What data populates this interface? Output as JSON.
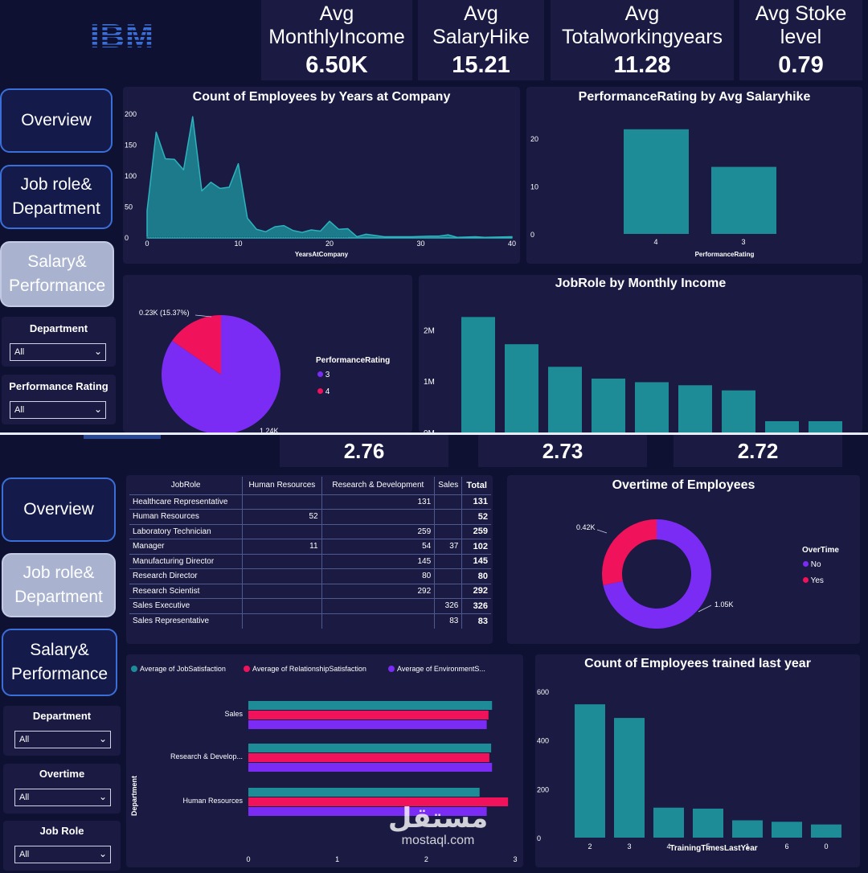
{
  "colors": {
    "teal": "#1e8c96",
    "pink": "#f0125a",
    "purple": "#7a2cf5",
    "navy": "#0f1133",
    "card": "#1a1a42"
  },
  "logo": {
    "text": "IBM"
  },
  "kpis": [
    {
      "label": "Avg MonthlyIncome",
      "value": "6.50K"
    },
    {
      "label": "Avg SalaryHike",
      "value": "15.21"
    },
    {
      "label": "Avg Totalworkingyears",
      "value": "11.28"
    },
    {
      "label": "Avg Stoke level",
      "value": "0.79"
    }
  ],
  "nav_top": {
    "overview": "Overview",
    "jobrole": "Job role& Department",
    "salary": "Salary& Performance"
  },
  "slicers_top": {
    "department": {
      "title": "Department",
      "value": "All"
    },
    "performance": {
      "title": "Performance Rating",
      "value": "All"
    }
  },
  "charts": {
    "years_at_company": {
      "title": "Count of Employees by Years at Company",
      "xlabel": "YearsAtCompany",
      "yticks": [
        "200",
        "150",
        "100",
        "50",
        "0"
      ],
      "xticks": [
        "0",
        "10",
        "20",
        "30",
        "40"
      ]
    },
    "perf_salaryhike": {
      "title": "PerformanceRating by Avg Salaryhike",
      "xlabel": "PerformanceRating",
      "yticks": [
        "20",
        "10",
        "0"
      ]
    },
    "perf_pie": {
      "legend_title": "PerformanceRating",
      "label_small": "0.23K (15.37%)",
      "label_large": "1.24K"
    },
    "jobrole_income": {
      "title": "JobRole by Monthly Income",
      "yticks": [
        "2M",
        "1M",
        "0M"
      ]
    },
    "overtime": {
      "title": "Overtime of Employees",
      "legend_title": "OverTime",
      "label_yes": "0.42K",
      "label_no": "1.05K"
    },
    "satisfaction": {
      "legend": [
        "Average of JobSatisfaction",
        "Average of RelationshipSatisfaction",
        "Average of EnvironmentS..."
      ],
      "ylabel": "Department",
      "xticks": [
        "0",
        "1",
        "2",
        "3"
      ]
    },
    "trained": {
      "title": "Count of Employees trained last year",
      "xlabel": "TrainingTimesLastYear",
      "yticks": [
        "600",
        "400",
        "200",
        "0"
      ]
    }
  },
  "chart_data": [
    {
      "type": "area",
      "title": "Count of Employees by Years at Company",
      "xlabel": "YearsAtCompany",
      "ylabel": "",
      "xlim": [
        0,
        40
      ],
      "ylim": [
        0,
        200
      ],
      "x": [
        0,
        1,
        2,
        3,
        4,
        5,
        6,
        7,
        8,
        9,
        10,
        11,
        12,
        13,
        14,
        15,
        16,
        17,
        18,
        19,
        20,
        21,
        22,
        23,
        24,
        25,
        26,
        27,
        29,
        31,
        32,
        33,
        34,
        36,
        37,
        40
      ],
      "values": [
        44,
        171,
        128,
        127,
        110,
        196,
        76,
        90,
        80,
        82,
        120,
        32,
        14,
        10,
        18,
        20,
        12,
        9,
        13,
        11,
        27,
        14,
        15,
        2,
        6,
        4,
        2,
        2,
        2,
        3,
        3,
        5,
        1,
        2,
        1,
        2
      ]
    },
    {
      "type": "bar",
      "title": "PerformanceRating by Avg Salaryhike",
      "xlabel": "PerformanceRating",
      "categories": [
        "4",
        "3"
      ],
      "values": [
        21.85,
        14.0
      ],
      "ylim": [
        0,
        24
      ]
    },
    {
      "type": "pie",
      "legend": "PerformanceRating",
      "categories": [
        "3",
        "4"
      ],
      "values": [
        1244,
        226
      ],
      "labels": [
        "1.24K",
        "0.23K (15.37%)"
      ]
    },
    {
      "type": "bar",
      "title": "JobRole by Monthly Income",
      "values": [
        2.25,
        1.72,
        1.28,
        1.05,
        0.98,
        0.92,
        0.82,
        0.22,
        0.22
      ],
      "ylim": [
        0,
        2.6
      ]
    },
    {
      "type": "table",
      "columns": [
        "JobRole",
        "Human Resources",
        "Research & Development",
        "Sales",
        "Total"
      ],
      "rows": [
        [
          "Healthcare Representative",
          "",
          "131",
          "",
          "131"
        ],
        [
          "Human Resources",
          "52",
          "",
          "",
          "52"
        ],
        [
          "Laboratory Technician",
          "",
          "259",
          "",
          "259"
        ],
        [
          "Manager",
          "11",
          "54",
          "37",
          "102"
        ],
        [
          "Manufacturing Director",
          "",
          "145",
          "",
          "145"
        ],
        [
          "Research Director",
          "",
          "80",
          "",
          "80"
        ],
        [
          "Research Scientist",
          "",
          "292",
          "",
          "292"
        ],
        [
          "Sales Executive",
          "",
          "",
          "326",
          "326"
        ],
        [
          "Sales Representative",
          "",
          "",
          "83",
          "83"
        ]
      ]
    },
    {
      "type": "pie",
      "title": "Overtime of Employees",
      "legend": "OverTime",
      "categories": [
        "No",
        "Yes"
      ],
      "values": [
        1054,
        416
      ],
      "labels": [
        "1.05K",
        "0.42K"
      ]
    },
    {
      "type": "bar",
      "orientation": "horizontal",
      "ylabel": "Department",
      "categories": [
        "Sales",
        "Research & Develop...",
        "Human Resources"
      ],
      "series": [
        {
          "name": "Average of JobSatisfaction",
          "values": [
            2.74,
            2.73,
            2.6
          ]
        },
        {
          "name": "Average of RelationshipSatisfaction",
          "values": [
            2.7,
            2.71,
            2.92
          ]
        },
        {
          "name": "Average of EnvironmentS...",
          "values": [
            2.68,
            2.74,
            2.68
          ]
        }
      ],
      "xlim": [
        0,
        3
      ]
    },
    {
      "type": "bar",
      "title": "Count of Employees trained last year",
      "xlabel": "TrainingTimesLastYear",
      "categories": [
        "2",
        "3",
        "4",
        "5",
        "1",
        "6",
        "0"
      ],
      "values": [
        547,
        491,
        123,
        119,
        71,
        65,
        54
      ],
      "ylim": [
        0,
        620
      ]
    }
  ],
  "kpi_partial": [
    "2.76",
    "2.73",
    "2.72"
  ],
  "nav_bottom": {
    "overview": "Overview",
    "jobrole": "Job role& Department",
    "salary": "Salary& Performance"
  },
  "slicers_bottom": {
    "department": {
      "title": "Department",
      "value": "All"
    },
    "overtime": {
      "title": "Overtime",
      "value": "All"
    },
    "jobrole": {
      "title": "Job Role",
      "value": "All"
    }
  },
  "watermark": {
    "arabic": "مستقل",
    "latin": "mostaql.com"
  }
}
